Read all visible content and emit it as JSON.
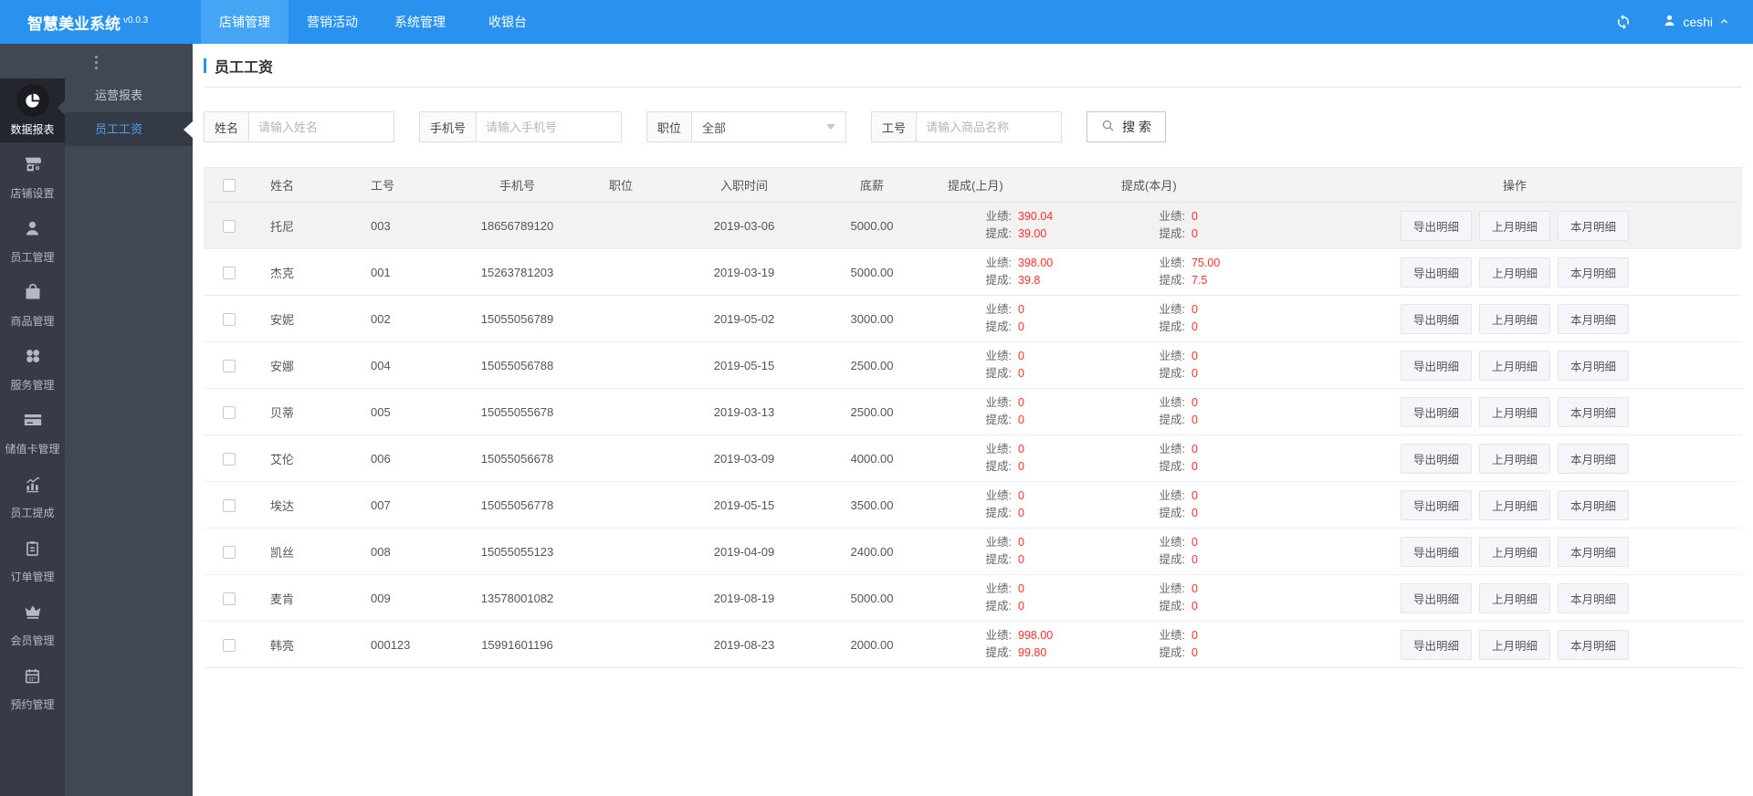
{
  "topbar": {
    "logo": "智慧美业系统",
    "version": "v0.0.3",
    "tabs": [
      {
        "label": "店铺管理",
        "active": true
      },
      {
        "label": "营销活动",
        "active": false
      },
      {
        "label": "系统管理",
        "active": false
      },
      {
        "label": "收银台",
        "active": false
      }
    ],
    "user": "ceshi"
  },
  "sidebar": {
    "items": [
      {
        "label": "数据报表",
        "icon": "pie-chart-icon",
        "active": true
      },
      {
        "label": "店铺设置",
        "icon": "storefront-icon",
        "active": false
      },
      {
        "label": "员工管理",
        "icon": "person-icon",
        "active": false
      },
      {
        "label": "商品管理",
        "icon": "shopping-bag-icon",
        "active": false
      },
      {
        "label": "服务管理",
        "icon": "services-grid-icon",
        "active": false
      },
      {
        "label": "储值卡管理",
        "icon": "credit-card-icon",
        "active": false
      },
      {
        "label": "员工提成",
        "icon": "chart-growth-icon",
        "active": false
      },
      {
        "label": "订单管理",
        "icon": "order-list-icon",
        "active": false
      },
      {
        "label": "会员管理",
        "icon": "crown-icon",
        "active": false
      },
      {
        "label": "预约管理",
        "icon": "calendar-icon",
        "active": false
      }
    ]
  },
  "submenu": {
    "items": [
      {
        "label": "运营报表",
        "active": false
      },
      {
        "label": "员工工资",
        "active": true
      }
    ]
  },
  "page": {
    "title": "员工工资"
  },
  "filters": {
    "name": {
      "label": "姓名",
      "placeholder": "请输入姓名"
    },
    "phone": {
      "label": "手机号",
      "placeholder": "请输入手机号"
    },
    "position": {
      "label": "职位",
      "value": "全部"
    },
    "job_no": {
      "label": "工号",
      "placeholder": "请输入商品名称"
    },
    "search_label": "搜 索"
  },
  "table": {
    "columns": [
      "姓名",
      "工号",
      "手机号",
      "职位",
      "入职时间",
      "底薪",
      "提成(上月)",
      "提成(本月)",
      "操作"
    ],
    "perf_label": "业绩:",
    "comm_label": "提成:",
    "actions": [
      "导出明细",
      "上月明细",
      "本月明细"
    ],
    "rows": [
      {
        "name": "托尼",
        "no": "003",
        "phone": "18656789120",
        "position": "",
        "hire_date": "2019-03-06",
        "base": "5000.00",
        "last": {
          "perf": "390.04",
          "comm": "39.00"
        },
        "cur": {
          "perf": "0",
          "comm": "0"
        },
        "highlighted": true
      },
      {
        "name": "杰克",
        "no": "001",
        "phone": "15263781203",
        "position": "",
        "hire_date": "2019-03-19",
        "base": "5000.00",
        "last": {
          "perf": "398.00",
          "comm": "39.8"
        },
        "cur": {
          "perf": "75.00",
          "comm": "7.5"
        },
        "highlighted": false
      },
      {
        "name": "安妮",
        "no": "002",
        "phone": "15055056789",
        "position": "",
        "hire_date": "2019-05-02",
        "base": "3000.00",
        "last": {
          "perf": "0",
          "comm": "0"
        },
        "cur": {
          "perf": "0",
          "comm": "0"
        },
        "highlighted": false
      },
      {
        "name": "安娜",
        "no": "004",
        "phone": "15055056788",
        "position": "",
        "hire_date": "2019-05-15",
        "base": "2500.00",
        "last": {
          "perf": "0",
          "comm": "0"
        },
        "cur": {
          "perf": "0",
          "comm": "0"
        },
        "highlighted": false
      },
      {
        "name": "贝蒂",
        "no": "005",
        "phone": "15055055678",
        "position": "",
        "hire_date": "2019-03-13",
        "base": "2500.00",
        "last": {
          "perf": "0",
          "comm": "0"
        },
        "cur": {
          "perf": "0",
          "comm": "0"
        },
        "highlighted": false
      },
      {
        "name": "艾伦",
        "no": "006",
        "phone": "15055056678",
        "position": "",
        "hire_date": "2019-03-09",
        "base": "4000.00",
        "last": {
          "perf": "0",
          "comm": "0"
        },
        "cur": {
          "perf": "0",
          "comm": "0"
        },
        "highlighted": false
      },
      {
        "name": "埃达",
        "no": "007",
        "phone": "15055056778",
        "position": "",
        "hire_date": "2019-05-15",
        "base": "3500.00",
        "last": {
          "perf": "0",
          "comm": "0"
        },
        "cur": {
          "perf": "0",
          "comm": "0"
        },
        "highlighted": false
      },
      {
        "name": "凯丝",
        "no": "008",
        "phone": "15055055123",
        "position": "",
        "hire_date": "2019-04-09",
        "base": "2400.00",
        "last": {
          "perf": "0",
          "comm": "0"
        },
        "cur": {
          "perf": "0",
          "comm": "0"
        },
        "highlighted": false
      },
      {
        "name": "麦肯",
        "no": "009",
        "phone": "13578001082",
        "position": "",
        "hire_date": "2019-08-19",
        "base": "5000.00",
        "last": {
          "perf": "0",
          "comm": "0"
        },
        "cur": {
          "perf": "0",
          "comm": "0"
        },
        "highlighted": false
      },
      {
        "name": "韩亮",
        "no": "000123",
        "phone": "15991601196",
        "position": "",
        "hire_date": "2019-08-23",
        "base": "2000.00",
        "last": {
          "perf": "998.00",
          "comm": "99.80"
        },
        "cur": {
          "perf": "0",
          "comm": "0"
        },
        "highlighted": false
      }
    ]
  },
  "colors": {
    "topbar": "#2892ee",
    "topbar_active_tab": "#45a5f4",
    "sidebar": "#414854",
    "rail": "#363b46",
    "rail_active": "#23262d",
    "accent": "#2892ee",
    "red_value": "#fe2d2d",
    "submenu_active_text": "#4f9fe8"
  }
}
